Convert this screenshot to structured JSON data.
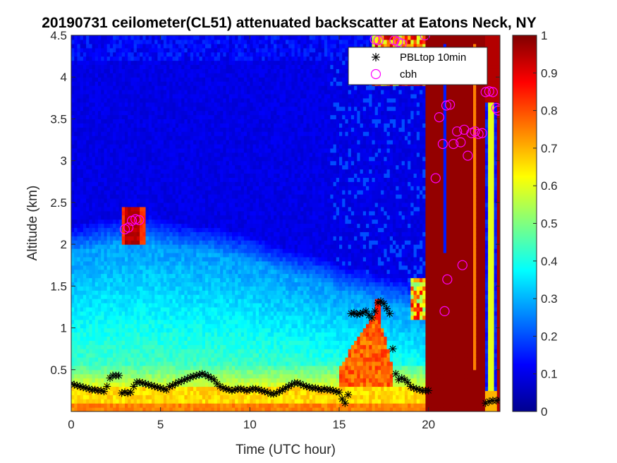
{
  "chart_data": {
    "type": "heatmap",
    "title": "20190731 ceilometer(CL51) attenuated backscatter at Eatons Neck, NY",
    "xlabel": "Time (UTC hour)",
    "ylabel": "Altitude (km)",
    "xlim": [
      0,
      24
    ],
    "ylim": [
      0,
      4.5
    ],
    "xticks": [
      0,
      5,
      10,
      15,
      20
    ],
    "yticks": [
      0.5,
      1,
      1.5,
      2,
      2.5,
      3,
      3.5,
      4,
      4.5
    ],
    "xtick_labels": [
      "0",
      "5",
      "10",
      "15",
      "20"
    ],
    "ytick_labels": [
      "0.5",
      "1",
      "1.5",
      "2",
      "2.5",
      "3",
      "3.5",
      "4",
      "4.5"
    ],
    "colorbar": {
      "range": [
        0,
        1
      ],
      "ticks": [
        0,
        0.1,
        0.2,
        0.3,
        0.4,
        0.5,
        0.6,
        0.7,
        0.8,
        0.9,
        1
      ],
      "tick_labels": [
        "0",
        "0.1",
        "0.2",
        "0.3",
        "0.4",
        "0.5",
        "0.6",
        "0.7",
        "0.8",
        "0.9",
        "1"
      ],
      "colormap": "jet"
    },
    "legend": {
      "location": "top-right",
      "entries": [
        "PBLtop 10min",
        "cbh"
      ]
    },
    "series": [
      {
        "name": "PBLtop 10min",
        "marker": "asterisk",
        "color": "#000000",
        "x": [
          0.0,
          0.17,
          0.33,
          0.5,
          0.67,
          0.83,
          1.0,
          1.17,
          1.33,
          1.5,
          1.67,
          1.83,
          2.0,
          2.17,
          2.33,
          2.5,
          2.67,
          2.83,
          3.0,
          3.17,
          3.33,
          3.5,
          3.67,
          3.83,
          4.0,
          4.17,
          4.33,
          4.5,
          4.67,
          4.83,
          5.0,
          5.17,
          5.33,
          5.5,
          5.67,
          5.83,
          6.0,
          6.17,
          6.33,
          6.5,
          6.67,
          6.83,
          7.0,
          7.17,
          7.33,
          7.5,
          7.67,
          7.83,
          8.0,
          8.17,
          8.33,
          8.5,
          8.67,
          8.83,
          9.0,
          9.17,
          9.33,
          9.5,
          9.67,
          9.83,
          10.0,
          10.17,
          10.33,
          10.5,
          10.67,
          10.83,
          11.0,
          11.17,
          11.33,
          11.5,
          11.67,
          11.83,
          12.0,
          12.17,
          12.33,
          12.5,
          12.67,
          12.83,
          13.0,
          13.17,
          13.33,
          13.5,
          13.67,
          13.83,
          14.0,
          14.17,
          14.33,
          14.5,
          14.67,
          14.83,
          15.0,
          15.17,
          15.33,
          15.5,
          15.67,
          15.83,
          16.0,
          16.17,
          16.33,
          16.5,
          16.67,
          16.83,
          17.0,
          17.17,
          17.33,
          17.5,
          17.67,
          17.83,
          18.0,
          18.17,
          18.33,
          18.5,
          18.67,
          18.83,
          19.0,
          19.17,
          19.33,
          19.5,
          19.67,
          19.83,
          20.0,
          23.2,
          23.4,
          23.6,
          23.8,
          24.0
        ],
        "y": [
          0.33,
          0.32,
          0.31,
          0.3,
          0.29,
          0.28,
          0.27,
          0.26,
          0.26,
          0.25,
          0.25,
          0.24,
          0.3,
          0.4,
          0.43,
          0.43,
          0.43,
          0.22,
          0.23,
          0.22,
          0.23,
          0.3,
          0.35,
          0.35,
          0.34,
          0.33,
          0.32,
          0.31,
          0.3,
          0.29,
          0.28,
          0.27,
          0.26,
          0.3,
          0.31,
          0.33,
          0.35,
          0.36,
          0.38,
          0.39,
          0.41,
          0.42,
          0.43,
          0.44,
          0.45,
          0.44,
          0.42,
          0.4,
          0.38,
          0.33,
          0.3,
          0.28,
          0.27,
          0.26,
          0.25,
          0.26,
          0.27,
          0.27,
          0.26,
          0.25,
          0.26,
          0.27,
          0.27,
          0.26,
          0.25,
          0.24,
          0.23,
          0.21,
          0.21,
          0.22,
          0.24,
          0.26,
          0.28,
          0.3,
          0.32,
          0.34,
          0.34,
          0.33,
          0.31,
          0.3,
          0.29,
          0.28,
          0.28,
          0.27,
          0.26,
          0.27,
          0.26,
          0.26,
          0.25,
          0.24,
          0.23,
          0.15,
          0.1,
          0.2,
          1.17,
          1.18,
          1.16,
          1.17,
          1.18,
          1.2,
          1.15,
          1.12,
          1.2,
          1.3,
          1.32,
          1.29,
          1.23,
          1.17,
          0.75,
          0.45,
          0.38,
          0.4,
          0.38,
          0.35,
          0.3,
          0.28,
          0.27,
          0.26,
          0.25,
          0.25,
          0.25,
          0.1,
          0.12,
          0.13,
          0.13,
          0.14
        ]
      },
      {
        "name": "cbh",
        "marker": "circle",
        "color": "#ff00ff",
        "x": [
          3.0,
          3.2,
          3.4,
          3.6,
          3.8,
          17.0,
          17.2,
          18.1,
          18.3,
          18.5,
          19.8,
          20.4,
          20.6,
          20.8,
          21.0,
          21.2,
          21.4,
          21.6,
          21.8,
          22.0,
          22.2,
          22.4,
          22.6,
          22.8,
          23.0,
          23.2,
          23.4,
          23.6,
          23.8,
          23.9,
          20.9,
          21.05,
          21.9
        ],
        "y": [
          2.18,
          2.2,
          2.28,
          2.3,
          2.29,
          4.45,
          4.44,
          4.44,
          4.42,
          4.4,
          4.5,
          2.79,
          3.52,
          3.2,
          3.66,
          3.67,
          3.2,
          3.35,
          3.22,
          3.37,
          3.06,
          3.33,
          3.35,
          3.32,
          3.33,
          3.82,
          3.83,
          3.82,
          3.63,
          3.6,
          1.2,
          1.58,
          1.75
        ]
      }
    ]
  }
}
